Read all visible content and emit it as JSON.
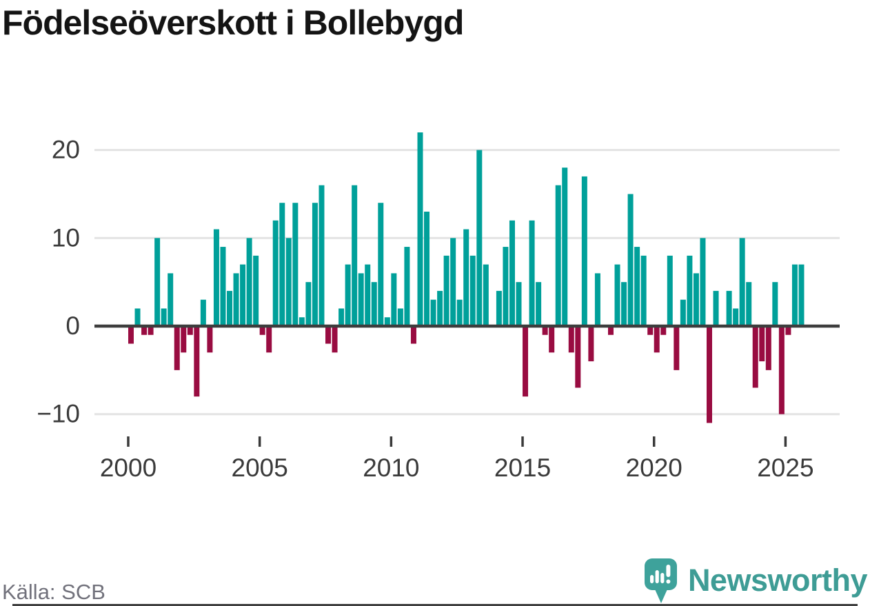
{
  "title": "Födelseöverskott i Bollebygd",
  "source": "Källa: SCB",
  "logo": {
    "text": "Newsworthy"
  },
  "chart_data": {
    "type": "bar",
    "title": "Födelseöverskott i Bollebygd",
    "x_unit": "quarter",
    "start_period": "2000-Q1",
    "end_period": "2025-Q3",
    "periods": [
      "2000-Q1",
      "2000-Q2",
      "2000-Q3",
      "2000-Q4",
      "2001-Q1",
      "2001-Q2",
      "2001-Q3",
      "2001-Q4",
      "2002-Q1",
      "2002-Q2",
      "2002-Q3",
      "2002-Q4",
      "2003-Q1",
      "2003-Q2",
      "2003-Q3",
      "2003-Q4",
      "2004-Q1",
      "2004-Q2",
      "2004-Q3",
      "2004-Q4",
      "2005-Q1",
      "2005-Q2",
      "2005-Q3",
      "2005-Q4",
      "2006-Q1",
      "2006-Q2",
      "2006-Q3",
      "2006-Q4",
      "2007-Q1",
      "2007-Q2",
      "2007-Q3",
      "2007-Q4",
      "2008-Q1",
      "2008-Q2",
      "2008-Q3",
      "2008-Q4",
      "2009-Q1",
      "2009-Q2",
      "2009-Q3",
      "2009-Q4",
      "2010-Q1",
      "2010-Q2",
      "2010-Q3",
      "2010-Q4",
      "2011-Q1",
      "2011-Q2",
      "2011-Q3",
      "2011-Q4",
      "2012-Q1",
      "2012-Q2",
      "2012-Q3",
      "2012-Q4",
      "2013-Q1",
      "2013-Q2",
      "2013-Q3",
      "2013-Q4",
      "2014-Q1",
      "2014-Q2",
      "2014-Q3",
      "2014-Q4",
      "2015-Q1",
      "2015-Q2",
      "2015-Q3",
      "2015-Q4",
      "2016-Q1",
      "2016-Q2",
      "2016-Q3",
      "2016-Q4",
      "2017-Q1",
      "2017-Q2",
      "2017-Q3",
      "2017-Q4",
      "2018-Q1",
      "2018-Q2",
      "2018-Q3",
      "2018-Q4",
      "2019-Q1",
      "2019-Q2",
      "2019-Q3",
      "2019-Q4",
      "2020-Q1",
      "2020-Q2",
      "2020-Q3",
      "2020-Q4",
      "2021-Q1",
      "2021-Q2",
      "2021-Q3",
      "2021-Q4",
      "2022-Q1",
      "2022-Q2",
      "2022-Q3",
      "2022-Q4",
      "2023-Q1",
      "2023-Q2",
      "2023-Q3",
      "2023-Q4",
      "2024-Q1",
      "2024-Q2",
      "2024-Q3",
      "2024-Q4",
      "2025-Q1",
      "2025-Q2",
      "2025-Q3"
    ],
    "values": [
      -2,
      2,
      -1,
      -1,
      10,
      2,
      6,
      -5,
      -3,
      -1,
      -8,
      3,
      -3,
      11,
      9,
      4,
      6,
      7,
      10,
      8,
      -1,
      -3,
      12,
      14,
      10,
      14,
      1,
      5,
      14,
      16,
      -2,
      -3,
      2,
      7,
      16,
      6,
      7,
      5,
      14,
      1,
      6,
      2,
      9,
      -2,
      22,
      13,
      3,
      4,
      8,
      10,
      3,
      11,
      8,
      20,
      7,
      0,
      4,
      9,
      12,
      5,
      -8,
      12,
      5,
      -1,
      -3,
      16,
      18,
      -3,
      -7,
      17,
      -4,
      6,
      0,
      -1,
      7,
      5,
      15,
      9,
      8,
      -1,
      -3,
      -1,
      8,
      -5,
      3,
      8,
      6,
      10,
      -11,
      4,
      0,
      4,
      2,
      10,
      5,
      -7,
      -4,
      -5,
      5,
      -10,
      -1,
      7,
      7
    ],
    "y_ticks": [
      -10,
      0,
      10,
      20
    ],
    "x_ticks": [
      2000,
      2005,
      2010,
      2015,
      2020,
      2025
    ],
    "ylim": [
      -12,
      23
    ],
    "grid": "horizontal",
    "legend": "none",
    "colors": {
      "positive": "#00a09a",
      "negative": "#990c41",
      "axis": "#3d3d3d",
      "grid": "#e3e3e3",
      "text": "#3a3a3a"
    }
  }
}
